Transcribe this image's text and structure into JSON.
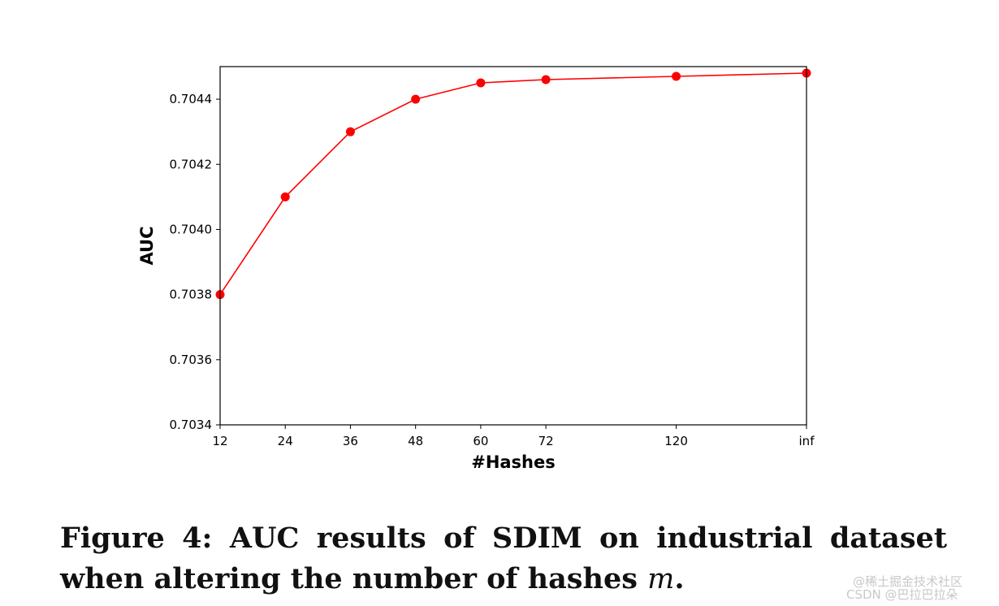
{
  "chart_data": {
    "type": "line",
    "categories": [
      "12",
      "24",
      "36",
      "48",
      "60",
      "72",
      "120",
      "inf"
    ],
    "x_positions": [
      12,
      24,
      36,
      48,
      60,
      72,
      96,
      120
    ],
    "series": [
      {
        "name": "AUC",
        "values": [
          0.7038,
          0.7041,
          0.7043,
          0.7044,
          0.70445,
          0.70446,
          0.70447,
          0.70448
        ],
        "color": "#ff0000"
      }
    ],
    "title": "",
    "xlabel": "#Hashes",
    "ylabel": "AUC",
    "xlim": [
      12,
      120
    ],
    "ylim": [
      0.7034,
      0.7045
    ],
    "yticks": [
      0.7034,
      0.7036,
      0.7038,
      0.704,
      0.7042,
      0.7044
    ],
    "ytick_labels": [
      "0.7034",
      "0.7036",
      "0.7038",
      "0.7040",
      "0.7042",
      "0.7044"
    ],
    "grid": false,
    "legend": "none"
  },
  "caption": {
    "text": "Figure 4: AUC results of SDIM on industrial dataset when altering the number of hashes ",
    "variable": "m",
    "end": "."
  },
  "watermarks": {
    "line1": "@稀土掘金技术社区",
    "line2": "CSDN @巴拉巴拉朵"
  }
}
